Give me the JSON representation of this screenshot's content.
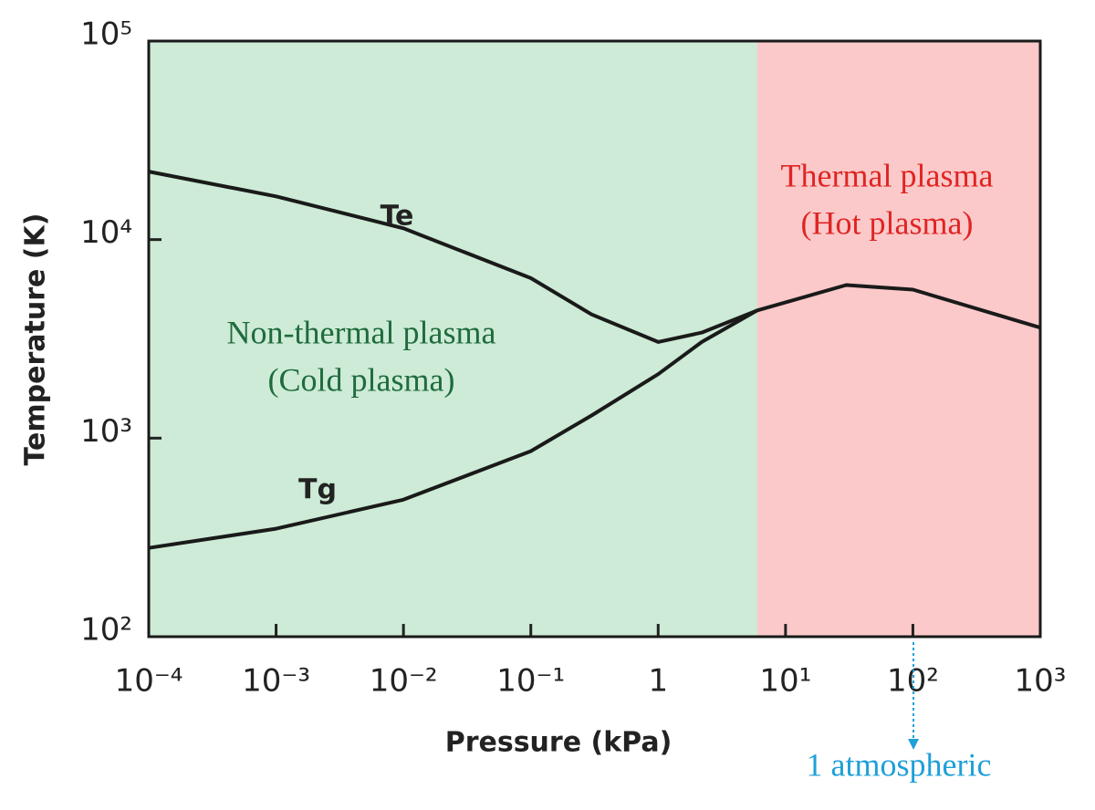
{
  "chart_data": {
    "type": "line",
    "xlabel": "Pressure (kPa)",
    "ylabel": "Temperature (K)",
    "xscale": "log",
    "yscale": "log",
    "xlim": [
      0.0001,
      1000
    ],
    "ylim": [
      100,
      100000
    ],
    "xticks": [
      {
        "value": 0.0001,
        "label": "10⁻⁴"
      },
      {
        "value": 0.001,
        "label": "10⁻³"
      },
      {
        "value": 0.01,
        "label": "10⁻²"
      },
      {
        "value": 0.1,
        "label": "10⁻¹"
      },
      1,
      {
        "value": 10,
        "label": "10¹"
      },
      {
        "value": 100,
        "label": "10²"
      },
      {
        "value": 1000,
        "label": "10³"
      }
    ],
    "yticks": [
      {
        "value": 100,
        "label": "10²"
      },
      {
        "value": 1000,
        "label": "10³"
      },
      {
        "value": 10000,
        "label": "10⁴"
      },
      {
        "value": 100000,
        "label": "10⁵"
      }
    ],
    "x": [
      0.0001,
      0.001,
      0.01,
      0.1,
      0.3,
      1,
      2.2,
      6,
      30,
      100,
      1000
    ],
    "series": [
      {
        "name": "Te",
        "color": "#1a1a1a",
        "values": [
          22000,
          16500,
          11400,
          6400,
          4200,
          3050,
          3400,
          4400,
          5900,
          5600,
          3600
        ]
      },
      {
        "name": "Tg",
        "color": "#1a1a1a",
        "values": [
          280,
          350,
          490,
          860,
          1300,
          2100,
          3050,
          4400,
          null,
          null,
          null
        ]
      }
    ],
    "regions": [
      {
        "label_lines": [
          "Non-thermal plasma",
          "(Cold plasma)"
        ],
        "xlim": [
          0.0001,
          6
        ],
        "color": "#cdebd6",
        "text_color": "#1f6b3d"
      },
      {
        "label_lines": [
          "Thermal plasma",
          "(Hot plasma)"
        ],
        "xlim": [
          6,
          1000
        ],
        "color": "#fbc9c9",
        "text_color": "#e02424"
      }
    ],
    "marker": {
      "label": "1 atmospheric",
      "x": 101,
      "color": "#1ea0d8"
    }
  }
}
